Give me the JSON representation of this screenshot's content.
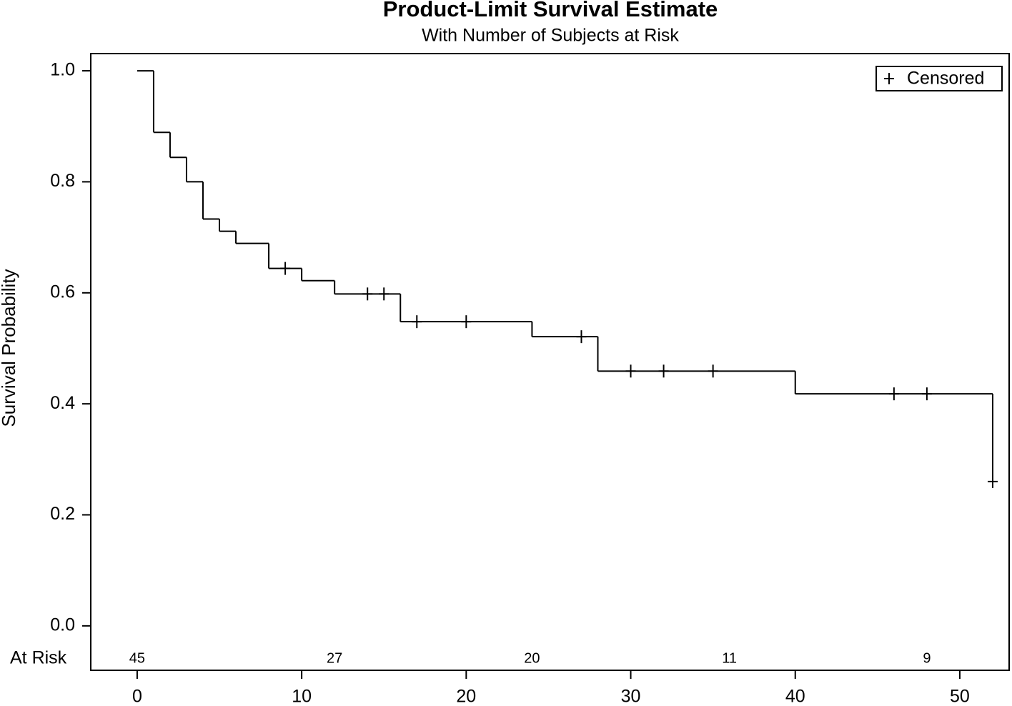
{
  "chart_data": {
    "type": "survival",
    "title": "Product-Limit Survival Estimate",
    "subtitle": "With Number of Subjects at Risk",
    "y_label": "Survival Probability",
    "x": [
      0,
      1,
      2,
      3,
      4,
      5,
      6,
      8,
      10,
      12,
      16,
      24,
      28,
      40,
      52
    ],
    "values": [
      1.0,
      0.889,
      0.844,
      0.8,
      0.733,
      0.711,
      0.689,
      0.644,
      0.622,
      0.598,
      0.548,
      0.521,
      0.459,
      0.418,
      0.26
    ],
    "color": "#000000",
    "censored": {
      "name": "Censored",
      "x": [
        9,
        14,
        15,
        17,
        20,
        27,
        30,
        32,
        35,
        46,
        48,
        52
      ],
      "values": [
        0.644,
        0.598,
        0.598,
        0.548,
        0.548,
        0.521,
        0.459,
        0.459,
        0.459,
        0.418,
        0.418,
        0.26
      ]
    },
    "at_risk": {
      "label": "At Risk",
      "x": [
        0,
        12,
        24,
        36,
        48
      ],
      "values": [
        45,
        27,
        20,
        11,
        9
      ]
    },
    "xlim": [
      -2.82,
      53
    ],
    "ylim": [
      -0.08,
      1.031
    ],
    "xticks": [
      0,
      10,
      20,
      30,
      40,
      50
    ],
    "yticks": [
      {
        "value": 0,
        "label": "0.0"
      },
      0.2,
      0.4,
      0.6,
      0.8,
      {
        "value": 1,
        "label": "1.0"
      }
    ],
    "legend": "upper right"
  }
}
